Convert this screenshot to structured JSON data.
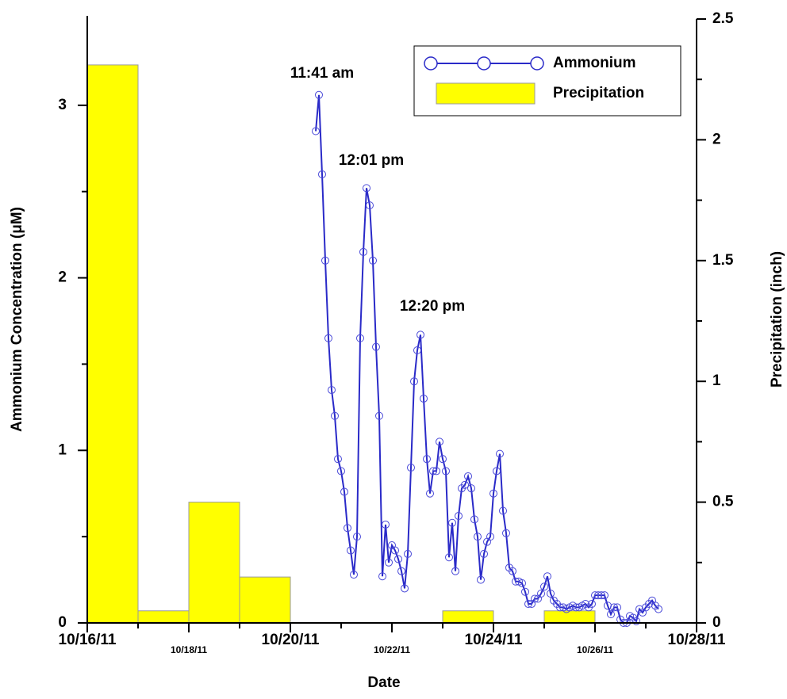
{
  "chart_data": {
    "type": "combo",
    "x_label": "Date",
    "y_label": "Ammonium Concentration (μM)",
    "y2_label": "Precipitation (inch)",
    "xlim": [
      16,
      28
    ],
    "xticks": [
      {
        "value": 16,
        "label": "10/16/11"
      },
      {
        "value": 18,
        "label": "10/18/11"
      },
      {
        "value": 20,
        "label": "10/20/11"
      },
      {
        "value": 22,
        "label": "10/22/11"
      },
      {
        "value": 24,
        "label": "10/24/11"
      },
      {
        "value": 26,
        "label": "10/26/11"
      },
      {
        "value": 28,
        "label": "10/28/11"
      }
    ],
    "ylim": [
      0,
      3.5
    ],
    "yticks": [
      0,
      1,
      2,
      3
    ],
    "y2lim": [
      0,
      2.5
    ],
    "y2ticks": [
      0,
      0.5,
      1,
      1.5,
      2,
      2.5
    ],
    "annotations": [
      "11:41 am",
      "12:01 pm",
      "12:20 pm"
    ],
    "legend": "top-right",
    "series": [
      {
        "name": "Ammonium",
        "type": "line",
        "color": "#2a2ac8",
        "x": [
          20.5,
          20.5625,
          20.625,
          20.6875,
          20.75,
          20.8125,
          20.875,
          20.9375,
          21,
          21.0625,
          21.125,
          21.1875,
          21.25,
          21.3125,
          21.375,
          21.4375,
          21.5,
          21.5625,
          21.625,
          21.6875,
          21.75,
          21.8125,
          21.875,
          21.9375,
          22,
          22.0625,
          22.125,
          22.1875,
          22.25,
          22.3125,
          22.375,
          22.4375,
          22.5,
          22.5625,
          22.625,
          22.6875,
          22.75,
          22.8125,
          22.875,
          22.9375,
          23,
          23.0625,
          23.125,
          23.1875,
          23.25,
          23.3125,
          23.375,
          23.4375,
          23.5,
          23.5625,
          23.625,
          23.6875,
          23.75,
          23.8125,
          23.875,
          23.9375,
          24,
          24.0625,
          24.125,
          24.1875,
          24.25,
          24.3125,
          24.375,
          24.4375,
          24.5,
          24.5625,
          24.625,
          24.6875,
          24.75,
          24.8125,
          24.875,
          24.9375,
          25,
          25.0625,
          25.125,
          25.1875,
          25.25,
          25.3125,
          25.375,
          25.4375,
          25.5,
          25.5625,
          25.625,
          25.6875,
          25.75,
          25.8125,
          25.875,
          25.9375,
          26,
          26.0625,
          26.125,
          26.1875,
          26.25,
          26.3125,
          26.375,
          26.4375,
          26.5,
          26.5625,
          26.625,
          26.6875,
          26.75,
          26.8125,
          26.875,
          26.9375,
          27,
          27.0625,
          27.125,
          27.1875,
          27.25
        ],
        "values": [
          2.85,
          3.06,
          2.6,
          2.1,
          1.65,
          1.35,
          1.2,
          0.95,
          0.88,
          0.76,
          0.55,
          0.42,
          0.28,
          0.5,
          1.65,
          2.15,
          2.52,
          2.42,
          2.1,
          1.6,
          1.2,
          0.27,
          0.57,
          0.35,
          0.45,
          0.42,
          0.37,
          0.3,
          0.2,
          0.4,
          0.9,
          1.4,
          1.58,
          1.67,
          1.3,
          0.95,
          0.75,
          0.88,
          0.88,
          1.05,
          0.95,
          0.88,
          0.38,
          0.58,
          0.3,
          0.62,
          0.78,
          0.8,
          0.85,
          0.78,
          0.6,
          0.5,
          0.25,
          0.4,
          0.47,
          0.5,
          0.75,
          0.88,
          0.98,
          0.65,
          0.52,
          0.32,
          0.3,
          0.24,
          0.24,
          0.23,
          0.18,
          0.11,
          0.11,
          0.14,
          0.14,
          0.17,
          0.21,
          0.27,
          0.17,
          0.13,
          0.11,
          0.09,
          0.09,
          0.08,
          0.09,
          0.1,
          0.09,
          0.09,
          0.1,
          0.11,
          0.09,
          0.11,
          0.16,
          0.16,
          0.16,
          0.16,
          0.1,
          0.05,
          0.09,
          0.09,
          0.02,
          0,
          0,
          0.04,
          0.03,
          0.01,
          0.08,
          0.06,
          0.09,
          0.11,
          0.13,
          0.1,
          0.08
        ]
      },
      {
        "name": "Precipitation",
        "type": "bar",
        "axis": "y2",
        "color": "#ffff00",
        "bins": [
          16,
          17,
          18,
          19,
          20,
          21,
          22,
          23,
          24,
          25,
          26,
          27
        ],
        "values": [
          2.31,
          0.05,
          0.5,
          0.19,
          0,
          0,
          0,
          0.05,
          0,
          0.05,
          0
        ]
      }
    ]
  }
}
